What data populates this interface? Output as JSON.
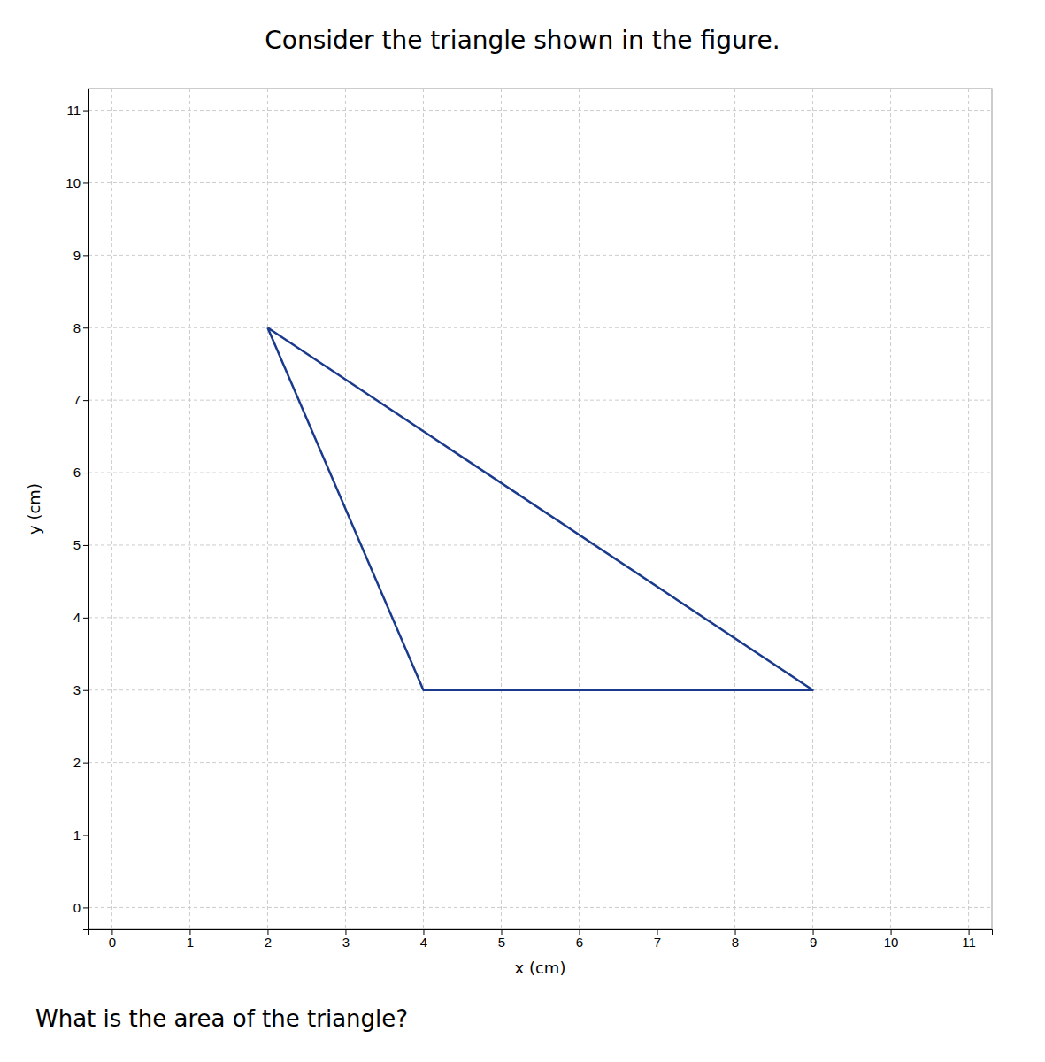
{
  "chart_data": {
    "type": "line",
    "title": "Consider the triangle shown in the figure.",
    "annotation": "What is the area of the triangle?",
    "xlabel": "x (cm)",
    "ylabel": "y (cm)",
    "x": [
      2,
      4,
      9,
      2
    ],
    "values": [
      8,
      3,
      3,
      8
    ],
    "color": "#1a3a8c",
    "xlim": [
      -0.3,
      11.3
    ],
    "ylim": [
      -0.3,
      11.3
    ],
    "xticks": [
      0,
      1,
      2,
      3,
      4,
      5,
      6,
      7,
      8,
      9,
      10,
      11
    ],
    "yticks": [
      0,
      1,
      2,
      3,
      4,
      5,
      6,
      7,
      8,
      9,
      10,
      11
    ],
    "grid": true
  }
}
